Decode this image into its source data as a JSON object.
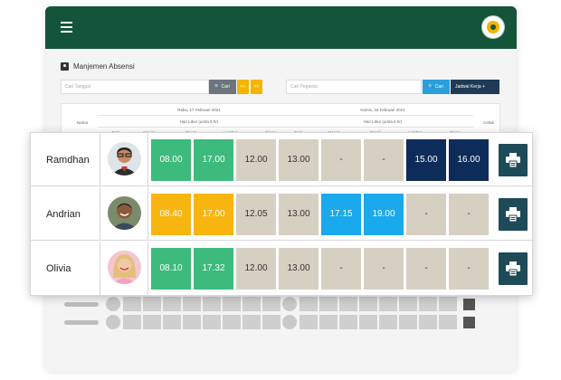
{
  "app": {
    "title": "Manjemen Absensi",
    "search_date_placeholder": "Cari Tanggal",
    "search_employee_placeholder": "Cari Pegawai",
    "search_button": "Cari",
    "prev_label": "<<",
    "next_label": ">>",
    "schedule_button": "Jadwal Kerja +",
    "table": {
      "col_name": "Nama",
      "col_print": "Cetak",
      "day1": {
        "date": "Rabu, 17 Februari 2021",
        "note": "Hari Libur (umta 6 hr)"
      },
      "day2": {
        "date": "Kamis, 18 Februari 2021",
        "note": "Hari Libur (umta 6 hr)"
      },
      "sub_headers": [
        "Foto",
        "Masuk",
        "Break",
        "Lembur",
        "Dinas"
      ]
    }
  },
  "colors": {
    "header": "#14553a",
    "green": "#3dbb7c",
    "yellow": "#f8b510",
    "gray": "#d6d0c3",
    "blue": "#19a9ec",
    "navy": "#0d2c5a",
    "print": "#1d4b57"
  },
  "employees": [
    {
      "name": "Ramdhan",
      "avatar": "avatar-man-glasses",
      "cells": [
        {
          "value": "08.00",
          "color": "green"
        },
        {
          "value": "17.00",
          "color": "green"
        },
        {
          "value": "12.00",
          "color": "gray"
        },
        {
          "value": "13.00",
          "color": "gray"
        },
        {
          "value": "-",
          "color": "gray"
        },
        {
          "value": "-",
          "color": "gray"
        },
        {
          "value": "15.00",
          "color": "navy"
        },
        {
          "value": "16.00",
          "color": "navy"
        }
      ]
    },
    {
      "name": "Andrian",
      "avatar": "avatar-man-smiling",
      "cells": [
        {
          "value": "08.40",
          "color": "yellow"
        },
        {
          "value": "17.00",
          "color": "yellow"
        },
        {
          "value": "12.05",
          "color": "gray"
        },
        {
          "value": "13.00",
          "color": "gray"
        },
        {
          "value": "17.15",
          "color": "blue"
        },
        {
          "value": "19.00",
          "color": "blue"
        },
        {
          "value": "-",
          "color": "gray"
        },
        {
          "value": "-",
          "color": "gray"
        }
      ]
    },
    {
      "name": "Olivia",
      "avatar": "avatar-woman-blonde",
      "cells": [
        {
          "value": "08.10",
          "color": "green"
        },
        {
          "value": "17.32",
          "color": "green"
        },
        {
          "value": "12.00",
          "color": "gray"
        },
        {
          "value": "13.00",
          "color": "gray"
        },
        {
          "value": "-",
          "color": "gray"
        },
        {
          "value": "-",
          "color": "gray"
        },
        {
          "value": "-",
          "color": "gray"
        },
        {
          "value": "-",
          "color": "gray"
        }
      ]
    }
  ]
}
